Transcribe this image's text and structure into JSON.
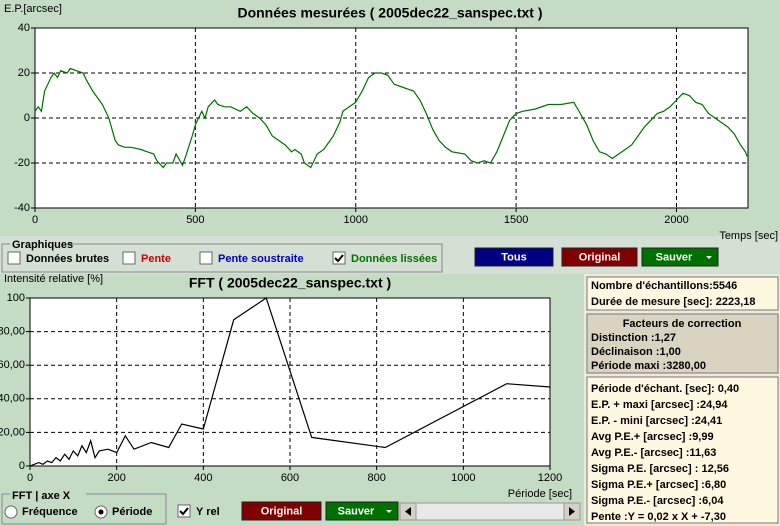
{
  "top_chart": {
    "type": "line",
    "title": "Données mesurées ( 2005dec22_sanspec.txt )",
    "y_label": "E.P.[arcsec]",
    "x_label": "Temps [sec]",
    "color": "#007000",
    "grid": true,
    "xlim": [
      0,
      2223
    ],
    "ylim": [
      -40,
      40
    ],
    "xticks": [
      0,
      500,
      1000,
      1500,
      2000
    ],
    "yticks": [
      -40,
      -20,
      0,
      20,
      40
    ],
    "x": [
      0,
      10,
      20,
      30,
      50,
      60,
      70,
      80,
      100,
      110,
      130,
      150,
      160,
      180,
      200,
      210,
      230,
      240,
      250,
      260,
      280,
      300,
      330,
      350,
      370,
      380,
      400,
      410,
      430,
      440,
      460,
      470,
      490,
      500,
      510,
      520,
      530,
      540,
      560,
      570,
      590,
      610,
      640,
      660,
      680,
      700,
      720,
      740,
      760,
      780,
      800,
      810,
      830,
      840,
      860,
      880,
      900,
      920,
      930,
      950,
      960,
      980,
      1000,
      1020,
      1040,
      1060,
      1080,
      1100,
      1120,
      1140,
      1160,
      1180,
      1200,
      1220,
      1240,
      1260,
      1280,
      1300,
      1340,
      1360,
      1380,
      1400,
      1420,
      1440,
      1460,
      1480,
      1500,
      1520,
      1560,
      1600,
      1640,
      1680,
      1700,
      1720,
      1740,
      1760,
      1780,
      1800,
      1820,
      1840,
      1860,
      1880,
      1900,
      1920,
      1940,
      1960,
      1980,
      2000,
      2020,
      2040,
      2060,
      2080,
      2100,
      2120,
      2140,
      2160,
      2180,
      2200,
      2215,
      2220
    ],
    "values": [
      3,
      5,
      3,
      12,
      18,
      20,
      18,
      21,
      20,
      22,
      21,
      20,
      17,
      12,
      8,
      6,
      0,
      -5,
      -10,
      -12,
      -13,
      -13,
      -14,
      -15,
      -16,
      -19,
      -22,
      -20,
      -20,
      -16,
      -21,
      -17,
      -8,
      -3,
      0,
      3,
      0,
      5,
      8,
      6,
      5,
      5,
      3,
      5,
      2,
      0,
      -3,
      -8,
      -10,
      -12,
      -15,
      -14,
      -16,
      -20,
      -22,
      -16,
      -14,
      -10,
      -8,
      -2,
      3,
      5,
      7,
      12,
      18,
      20,
      20,
      19,
      15,
      14,
      13,
      12,
      8,
      2,
      -5,
      -10,
      -13,
      -15,
      -16,
      -19,
      -20,
      -19,
      -20,
      -15,
      -8,
      -1,
      2,
      3,
      4,
      6,
      6,
      7,
      2,
      -3,
      -10,
      -15,
      -16,
      -18,
      -16,
      -14,
      -12,
      -8,
      -4,
      -1,
      2,
      3,
      5,
      8,
      11,
      10,
      7,
      6,
      2,
      0,
      -2,
      -4,
      -7,
      -12,
      -15,
      -17
    ]
  },
  "graphiques": {
    "title": "Graphiques",
    "options": [
      {
        "label": "Données brutes",
        "color": "#000000",
        "checked": false
      },
      {
        "label": "Pente",
        "color": "#d00000",
        "checked": false
      },
      {
        "label": "Pente soustraite",
        "color": "#0000c0",
        "checked": false
      },
      {
        "label": "Données lissées",
        "color": "#007000",
        "checked": true
      }
    ]
  },
  "top_buttons": [
    {
      "label": "Tous",
      "color": "#000080"
    },
    {
      "label": "Original",
      "color": "#800000"
    },
    {
      "label": "Sauver",
      "color": "#007000"
    }
  ],
  "fft_chart": {
    "type": "line",
    "title": "FFT ( 2005dec22_sanspec.txt )",
    "y_label": "Intensité relative [%]",
    "x_label": "Période [sec]",
    "color": "#000000",
    "grid": true,
    "xlim": [
      0,
      1200
    ],
    "ylim": [
      0,
      100
    ],
    "xticks": [
      0,
      200,
      400,
      600,
      800,
      1000,
      1200
    ],
    "yticks": [
      0,
      {
        "value": 20,
        "label": "20,00"
      },
      {
        "value": 40,
        "label": "40,00"
      },
      {
        "value": 60,
        "label": "60,00"
      },
      {
        "value": 80,
        "label": "80,00"
      },
      100
    ],
    "x": [
      0,
      10,
      20,
      30,
      40,
      50,
      60,
      70,
      80,
      90,
      100,
      110,
      120,
      130,
      140,
      150,
      160,
      180,
      200,
      220,
      240,
      280,
      320,
      350,
      400,
      470,
      545,
      650,
      820,
      1100,
      1200
    ],
    "values": [
      0,
      1,
      2,
      1,
      3,
      2,
      5,
      3,
      7,
      4,
      9,
      6,
      12,
      8,
      15,
      5,
      9,
      10,
      8,
      18,
      10,
      14,
      11,
      25,
      22,
      87,
      100,
      17,
      11,
      49,
      47
    ]
  },
  "fft_axis": {
    "title": "FFT | axe X",
    "options": [
      {
        "label": "Fréquence",
        "selected": false
      },
      {
        "label": "Période",
        "selected": true
      }
    ]
  },
  "y_rel": {
    "label": "Y rel",
    "checked": true
  },
  "fft_buttons": [
    {
      "label": "Original",
      "color": "#800000"
    },
    {
      "label": "Sauver",
      "color": "#007000"
    }
  ],
  "info": {
    "rows": [
      "Nombre d'échantillons:5546",
      "Durée de mesure [sec]: 2223,18"
    ]
  },
  "correction": {
    "title": "Facteurs de correction",
    "rows": [
      "Distinction :1,27",
      "Déclinaison :1,00",
      "Période maxi :3280,00"
    ]
  },
  "stats": {
    "rows": [
      "Période d'échant. [sec]: 0,40",
      "E.P. + maxi [arcsec] :24,94",
      "E.P. - mini [arcsec] :24,41",
      "Avg P.E.+ [arcsec] :9,99",
      "Avg P.E.- [arcsec] :11,63",
      "Sigma P.E. [arcsec] : 12,56",
      "Sigma P.E.+ [arcsec] :6,80",
      "Sigma P.E.- [arcsec] :6,04",
      "Pente :Y = 0,02 x X + -7,30"
    ]
  }
}
